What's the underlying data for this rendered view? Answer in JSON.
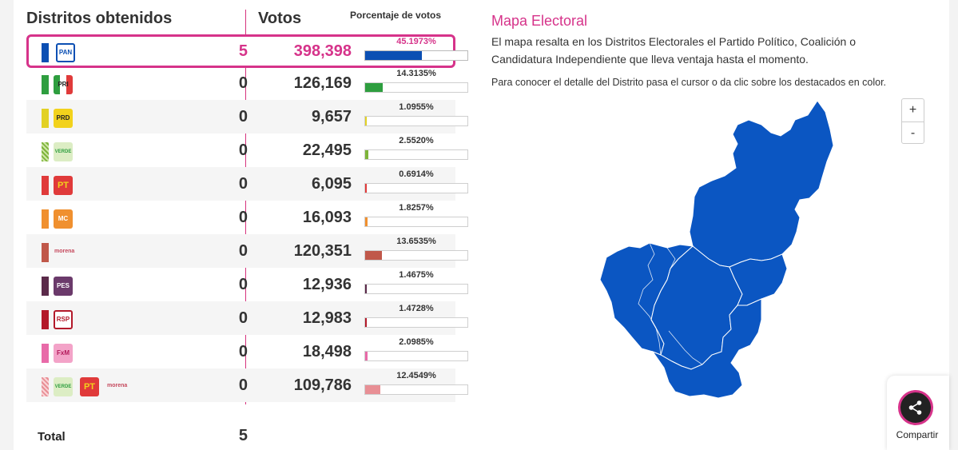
{
  "headers": {
    "districts": "Distritos obtenidos",
    "votes": "Votos",
    "percent": "Porcentaje de votos"
  },
  "rows": [
    {
      "party": "PAN",
      "logo_text": "PAN",
      "districts": "5",
      "votes": "398,398",
      "percent": "45.1973%",
      "pct_value": 45.1973,
      "color": "#0b4fb3",
      "leading": true
    },
    {
      "party": "PRI",
      "logo_text": "PRI",
      "districts": "0",
      "votes": "126,169",
      "percent": "14.3135%",
      "pct_value": 14.3135,
      "color": "#2e9e3f"
    },
    {
      "party": "PRD",
      "logo_text": "PRD",
      "districts": "0",
      "votes": "9,657",
      "percent": "1.0955%",
      "pct_value": 1.0955,
      "color": "#e2d124"
    },
    {
      "party": "VERDE",
      "logo_text": "VERDE",
      "districts": "0",
      "votes": "22,495",
      "percent": "2.5520%",
      "pct_value": 2.552,
      "color": "#7db43a"
    },
    {
      "party": "PT",
      "logo_text": "PT",
      "districts": "0",
      "votes": "6,095",
      "percent": "0.6914%",
      "pct_value": 0.6914,
      "color": "#e03a3a"
    },
    {
      "party": "MC",
      "logo_text": "MC",
      "districts": "0",
      "votes": "16,093",
      "percent": "1.8257%",
      "pct_value": 1.8257,
      "color": "#f0902f"
    },
    {
      "party": "MORENA",
      "logo_text": "morena",
      "districts": "0",
      "votes": "120,351",
      "percent": "13.6535%",
      "pct_value": 13.6535,
      "color": "#c0584a"
    },
    {
      "party": "PES",
      "logo_text": "PES",
      "districts": "0",
      "votes": "12,936",
      "percent": "1.4675%",
      "pct_value": 1.4675,
      "color": "#5b2a4a"
    },
    {
      "party": "RSP",
      "logo_text": "RSP",
      "districts": "0",
      "votes": "12,983",
      "percent": "1.4728%",
      "pct_value": 1.4728,
      "color": "#b3192a"
    },
    {
      "party": "FXM",
      "logo_text": "FxM",
      "districts": "0",
      "votes": "18,498",
      "percent": "2.0985%",
      "pct_value": 2.0985,
      "color": "#e86aa8"
    },
    {
      "party": "COALICION",
      "logo_text": "morena",
      "districts": "0",
      "votes": "109,786",
      "percent": "12.4549%",
      "pct_value": 12.4549,
      "color": "#e88f95"
    }
  ],
  "total": {
    "label": "Total",
    "value": "5"
  },
  "map": {
    "title": "Mapa Electoral",
    "description": "El mapa resalta en los Distritos Electorales el Partido Político, Coalición o Candidatura Independiente que lleva ventaja hasta el momento.",
    "hint": "Para conocer el detalle del Distrito pasa el cursor o da clic sobre los destacados en color.",
    "fill_color": "#0b56c2",
    "zoom_in": "+",
    "zoom_out": "-"
  },
  "share": {
    "label": "Compartir"
  }
}
